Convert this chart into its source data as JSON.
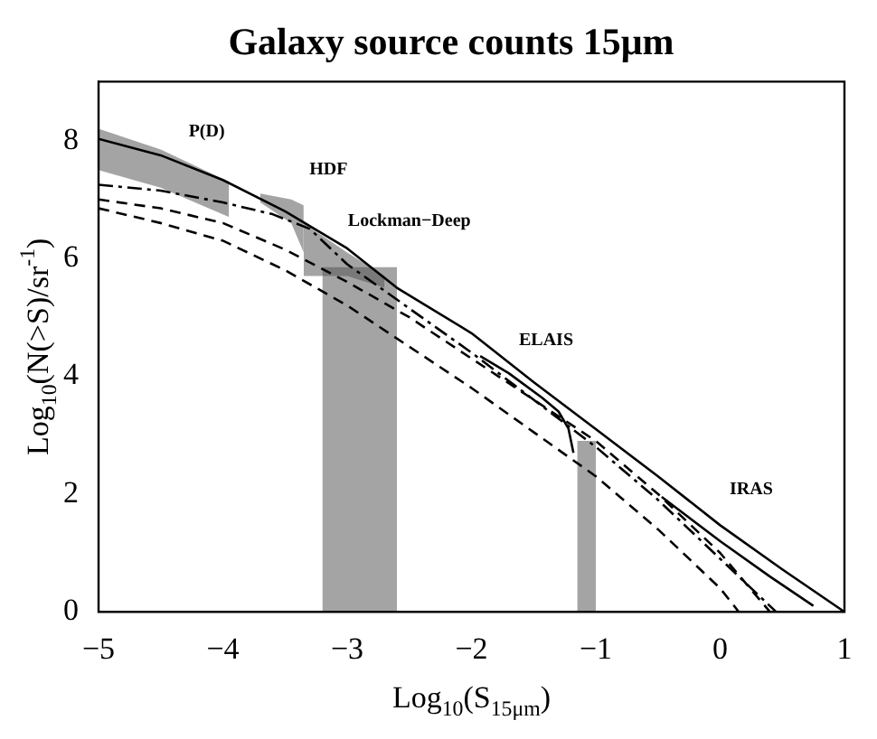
{
  "chart_data": {
    "type": "line",
    "title": "Galaxy source counts 15μm",
    "xlabel": "Log$_{10}$(S$_{15μm}$)",
    "ylabel": "Log$_{10}$(N(>S)/sr$^{-1}$)",
    "xlim": [
      -5,
      1
    ],
    "xticks": [
      -5,
      -4,
      -3,
      -2,
      -1,
      0,
      1
    ],
    "ylim": [
      0,
      9
    ],
    "yticks": [
      0,
      2,
      4,
      6,
      8
    ],
    "grid": false,
    "legend": false,
    "marker": "none",
    "series": [
      {
        "type": "line",
        "color": "#000000",
        "line_style": "solid",
        "x": [
          -5,
          -4.5,
          -4,
          -3.5,
          -3,
          -2.6,
          -2,
          -1.5,
          -1,
          -0.5,
          0,
          0.5,
          1
        ],
        "values": [
          8.03,
          7.75,
          7.33,
          6.8,
          6.17,
          5.5,
          4.73,
          3.9,
          3.1,
          2.3,
          1.47,
          0.72,
          0
        ]
      },
      {
        "type": "line",
        "color": "#000000",
        "line_style": "dashed",
        "x": [
          -5,
          -4.5,
          -4,
          -3.5,
          -3,
          -2.5,
          -2,
          -1.5,
          -1,
          -0.5,
          0,
          0.4
        ],
        "values": [
          7.0,
          6.85,
          6.6,
          6.15,
          5.6,
          5.0,
          4.3,
          3.6,
          2.9,
          2.0,
          1.0,
          0
        ]
      },
      {
        "type": "line",
        "color": "#000000",
        "line_style": "dashed",
        "x": [
          -5,
          -4.5,
          -4,
          -3.5,
          -3,
          -2.5,
          -2,
          -1.5,
          -1,
          -0.5,
          0,
          0.15
        ],
        "values": [
          6.85,
          6.6,
          6.3,
          5.8,
          5.2,
          4.5,
          3.8,
          3.05,
          2.3,
          1.4,
          0.4,
          0
        ]
      },
      {
        "type": "line",
        "color": "#000000",
        "line_style": "dashdot",
        "x": [
          -5,
          -4.5,
          -4,
          -3.6,
          -3.3,
          -3,
          -2.5,
          -2,
          -1.5,
          -1,
          -0.5,
          0,
          0.45
        ],
        "values": [
          7.25,
          7.15,
          6.95,
          6.75,
          6.5,
          5.9,
          5.15,
          4.4,
          3.6,
          2.8,
          1.9,
          0.9,
          0
        ]
      },
      {
        "type": "line",
        "color": "#000000",
        "line_style": "solid",
        "x": [
          -1.93,
          -1.7,
          -1.43,
          -1.3,
          -1.22,
          -1.18
        ],
        "values": [
          4.34,
          4.05,
          3.63,
          3.4,
          3.11,
          2.7
        ]
      },
      {
        "type": "line",
        "color": "#000000",
        "line_style": "solid",
        "x": [
          -0.47,
          0,
          0.4,
          0.75
        ],
        "values": [
          1.95,
          1.2,
          0.6,
          0.1
        ]
      },
      {
        "type": "line",
        "color": "#555555",
        "x": [
          -5,
          -4.5,
          -3.95
        ],
        "values": [
          null,
          null,
          null
        ],
        "upper": [
          8.2,
          7.85,
          7.3
        ],
        "lower": [
          7.5,
          7.2,
          6.7
        ]
      },
      {
        "type": "line",
        "color": "#555555",
        "x": [
          -3.7,
          -3.45,
          -3.35
        ],
        "values": [
          null,
          null,
          null
        ],
        "upper": [
          7.1,
          7.0,
          6.9
        ],
        "lower": [
          6.95,
          6.6,
          6.1
        ]
      },
      {
        "type": "line",
        "color": "#555555",
        "x": [
          -3.35,
          -3.0,
          -2.7
        ],
        "values": [
          null,
          null,
          null
        ],
        "upper": [
          6.6,
          6.1,
          5.7
        ],
        "lower": [
          5.7,
          5.7,
          5.5
        ]
      },
      {
        "type": "line",
        "color": "#555555",
        "x": [
          -3.2,
          -2.6
        ],
        "values": [
          null,
          null
        ],
        "upper": [
          5.85,
          5.85
        ],
        "lower": [
          0,
          0
        ]
      },
      {
        "type": "line",
        "color": "#555555",
        "x": [
          -1.15,
          -1.0
        ],
        "values": [
          null,
          null
        ],
        "upper": [
          2.9,
          2.9
        ],
        "lower": [
          0,
          0
        ]
      }
    ],
    "annotations": [
      "P(D)",
      "HDF",
      "Lockman−Deep",
      "ELAIS",
      "IRAS"
    ]
  }
}
